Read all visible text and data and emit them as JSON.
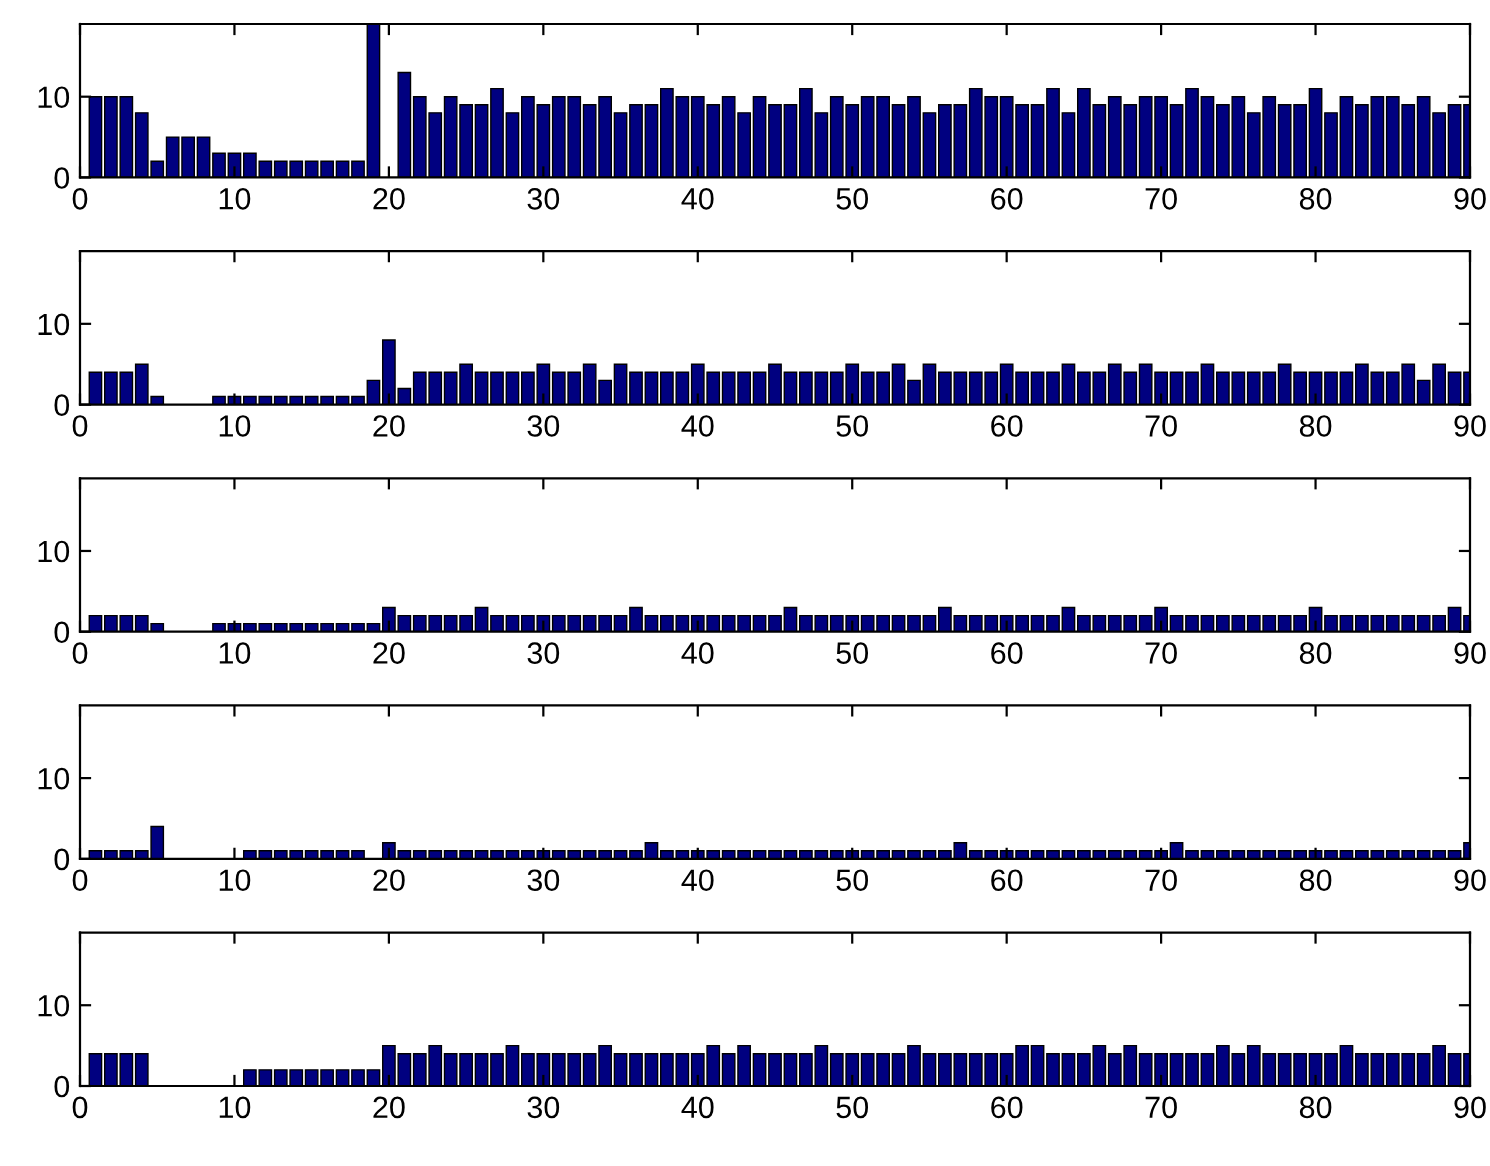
{
  "chart_data": [
    {
      "type": "bar",
      "x": [
        1,
        2,
        3,
        4,
        5,
        6,
        7,
        8,
        9,
        10,
        11,
        12,
        13,
        14,
        15,
        16,
        17,
        18,
        19,
        20,
        21,
        22,
        23,
        24,
        25,
        26,
        27,
        28,
        29,
        30,
        31,
        32,
        33,
        34,
        35,
        36,
        37,
        38,
        39,
        40,
        41,
        42,
        43,
        44,
        45,
        46,
        47,
        48,
        49,
        50,
        51,
        52,
        53,
        54,
        55,
        56,
        57,
        58,
        59,
        60,
        61,
        62,
        63,
        64,
        65,
        66,
        67,
        68,
        69,
        70,
        71,
        72,
        73,
        74,
        75,
        76,
        77,
        78,
        79,
        80,
        81,
        82,
        83,
        84,
        85,
        86,
        87,
        88,
        89,
        90
      ],
      "color": "#000080",
      "values": [
        10,
        10,
        10,
        8,
        2,
        5,
        5,
        5,
        3,
        3,
        3,
        2,
        2,
        2,
        2,
        2,
        2,
        2,
        19,
        0,
        13,
        10,
        8,
        10,
        9,
        9,
        11,
        8,
        10,
        9,
        10,
        10,
        9,
        10,
        8,
        9,
        9,
        11,
        10,
        10,
        9,
        10,
        8,
        10,
        9,
        9,
        11,
        8,
        10,
        9,
        10,
        10,
        9,
        10,
        8,
        9,
        9,
        11,
        10,
        10,
        9,
        9,
        11,
        8,
        11,
        9,
        10,
        9,
        10,
        10,
        9,
        11,
        10,
        9,
        10,
        8,
        10,
        9,
        9,
        11,
        8,
        10,
        9,
        10,
        10,
        9,
        10,
        8,
        9,
        9
      ],
      "xlim": [
        0,
        90
      ],
      "ylim": [
        0,
        19
      ],
      "xticks": [
        0,
        10,
        20,
        30,
        40,
        50,
        60,
        70,
        80,
        90
      ],
      "yticks": [
        0,
        10
      ]
    },
    {
      "type": "bar",
      "x": [
        1,
        2,
        3,
        4,
        5,
        6,
        7,
        8,
        9,
        10,
        11,
        12,
        13,
        14,
        15,
        16,
        17,
        18,
        19,
        20,
        21,
        22,
        23,
        24,
        25,
        26,
        27,
        28,
        29,
        30,
        31,
        32,
        33,
        34,
        35,
        36,
        37,
        38,
        39,
        40,
        41,
        42,
        43,
        44,
        45,
        46,
        47,
        48,
        49,
        50,
        51,
        52,
        53,
        54,
        55,
        56,
        57,
        58,
        59,
        60,
        61,
        62,
        63,
        64,
        65,
        66,
        67,
        68,
        69,
        70,
        71,
        72,
        73,
        74,
        75,
        76,
        77,
        78,
        79,
        80,
        81,
        82,
        83,
        84,
        85,
        86,
        87,
        88,
        89,
        90
      ],
      "color": "#000080",
      "values": [
        4,
        4,
        4,
        5,
        1,
        0,
        0,
        0,
        1,
        1,
        1,
        1,
        1,
        1,
        1,
        1,
        1,
        1,
        3,
        8,
        2,
        4,
        4,
        4,
        5,
        4,
        4,
        4,
        4,
        5,
        4,
        4,
        5,
        3,
        5,
        4,
        4,
        4,
        4,
        5,
        4,
        4,
        4,
        4,
        5,
        4,
        4,
        4,
        4,
        5,
        4,
        4,
        5,
        3,
        5,
        4,
        4,
        4,
        4,
        5,
        4,
        4,
        4,
        5,
        4,
        4,
        5,
        4,
        5,
        4,
        4,
        4,
        5,
        4,
        4,
        4,
        4,
        5,
        4,
        4,
        4,
        4,
        5,
        4,
        4,
        5,
        3,
        5,
        4,
        4
      ],
      "xlim": [
        0,
        90
      ],
      "ylim": [
        0,
        19
      ],
      "xticks": [
        0,
        10,
        20,
        30,
        40,
        50,
        60,
        70,
        80,
        90
      ],
      "yticks": [
        0,
        10
      ]
    },
    {
      "type": "bar",
      "x": [
        1,
        2,
        3,
        4,
        5,
        6,
        7,
        8,
        9,
        10,
        11,
        12,
        13,
        14,
        15,
        16,
        17,
        18,
        19,
        20,
        21,
        22,
        23,
        24,
        25,
        26,
        27,
        28,
        29,
        30,
        31,
        32,
        33,
        34,
        35,
        36,
        37,
        38,
        39,
        40,
        41,
        42,
        43,
        44,
        45,
        46,
        47,
        48,
        49,
        50,
        51,
        52,
        53,
        54,
        55,
        56,
        57,
        58,
        59,
        60,
        61,
        62,
        63,
        64,
        65,
        66,
        67,
        68,
        69,
        70,
        71,
        72,
        73,
        74,
        75,
        76,
        77,
        78,
        79,
        80,
        81,
        82,
        83,
        84,
        85,
        86,
        87,
        88,
        89,
        90
      ],
      "color": "#000080",
      "values": [
        2,
        2,
        2,
        2,
        1,
        0,
        0,
        0,
        1,
        1,
        1,
        1,
        1,
        1,
        1,
        1,
        1,
        1,
        1,
        3,
        2,
        2,
        2,
        2,
        2,
        3,
        2,
        2,
        2,
        2,
        2,
        2,
        2,
        2,
        2,
        3,
        2,
        2,
        2,
        2,
        2,
        2,
        2,
        2,
        2,
        3,
        2,
        2,
        2,
        2,
        2,
        2,
        2,
        2,
        2,
        3,
        2,
        2,
        2,
        2,
        2,
        2,
        2,
        3,
        2,
        2,
        2,
        2,
        2,
        3,
        2,
        2,
        2,
        2,
        2,
        2,
        2,
        2,
        2,
        3,
        2,
        2,
        2,
        2,
        2,
        2,
        2,
        2,
        3,
        2
      ],
      "xlim": [
        0,
        90
      ],
      "ylim": [
        0,
        19
      ],
      "xticks": [
        0,
        10,
        20,
        30,
        40,
        50,
        60,
        70,
        80,
        90
      ],
      "yticks": [
        0,
        10
      ]
    },
    {
      "type": "bar",
      "x": [
        1,
        2,
        3,
        4,
        5,
        6,
        7,
        8,
        9,
        10,
        11,
        12,
        13,
        14,
        15,
        16,
        17,
        18,
        19,
        20,
        21,
        22,
        23,
        24,
        25,
        26,
        27,
        28,
        29,
        30,
        31,
        32,
        33,
        34,
        35,
        36,
        37,
        38,
        39,
        40,
        41,
        42,
        43,
        44,
        45,
        46,
        47,
        48,
        49,
        50,
        51,
        52,
        53,
        54,
        55,
        56,
        57,
        58,
        59,
        60,
        61,
        62,
        63,
        64,
        65,
        66,
        67,
        68,
        69,
        70,
        71,
        72,
        73,
        74,
        75,
        76,
        77,
        78,
        79,
        80,
        81,
        82,
        83,
        84,
        85,
        86,
        87,
        88,
        89,
        90
      ],
      "color": "#000080",
      "values": [
        1,
        1,
        1,
        1,
        4,
        0,
        0,
        0,
        0,
        0,
        1,
        1,
        1,
        1,
        1,
        1,
        1,
        1,
        0,
        2,
        1,
        1,
        1,
        1,
        1,
        1,
        1,
        1,
        1,
        1,
        1,
        1,
        1,
        1,
        1,
        1,
        2,
        1,
        1,
        1,
        1,
        1,
        1,
        1,
        1,
        1,
        1,
        1,
        1,
        1,
        1,
        1,
        1,
        1,
        1,
        1,
        2,
        1,
        1,
        1,
        1,
        1,
        1,
        1,
        1,
        1,
        1,
        1,
        1,
        1,
        2,
        1,
        1,
        1,
        1,
        1,
        1,
        1,
        1,
        1,
        1,
        1,
        1,
        1,
        1,
        1,
        1,
        1,
        1,
        2
      ],
      "xlim": [
        0,
        90
      ],
      "ylim": [
        0,
        19
      ],
      "xticks": [
        0,
        10,
        20,
        30,
        40,
        50,
        60,
        70,
        80,
        90
      ],
      "yticks": [
        0,
        10
      ]
    },
    {
      "type": "bar",
      "x": [
        1,
        2,
        3,
        4,
        5,
        6,
        7,
        8,
        9,
        10,
        11,
        12,
        13,
        14,
        15,
        16,
        17,
        18,
        19,
        20,
        21,
        22,
        23,
        24,
        25,
        26,
        27,
        28,
        29,
        30,
        31,
        32,
        33,
        34,
        35,
        36,
        37,
        38,
        39,
        40,
        41,
        42,
        43,
        44,
        45,
        46,
        47,
        48,
        49,
        50,
        51,
        52,
        53,
        54,
        55,
        56,
        57,
        58,
        59,
        60,
        61,
        62,
        63,
        64,
        65,
        66,
        67,
        68,
        69,
        70,
        71,
        72,
        73,
        74,
        75,
        76,
        77,
        78,
        79,
        80,
        81,
        82,
        83,
        84,
        85,
        86,
        87,
        88,
        89,
        90
      ],
      "color": "#000080",
      "values": [
        4,
        4,
        4,
        4,
        0,
        0,
        0,
        0,
        0,
        0,
        2,
        2,
        2,
        2,
        2,
        2,
        2,
        2,
        2,
        5,
        4,
        4,
        5,
        4,
        4,
        4,
        4,
        5,
        4,
        4,
        4,
        4,
        4,
        5,
        4,
        4,
        4,
        4,
        4,
        4,
        5,
        4,
        5,
        4,
        4,
        4,
        4,
        5,
        4,
        4,
        4,
        4,
        4,
        5,
        4,
        4,
        4,
        4,
        4,
        4,
        5,
        5,
        4,
        4,
        4,
        5,
        4,
        5,
        4,
        4,
        4,
        4,
        4,
        5,
        4,
        5,
        4,
        4,
        4,
        4,
        4,
        5,
        4,
        4,
        4,
        4,
        4,
        5,
        4,
        4
      ],
      "xlim": [
        0,
        90
      ],
      "ylim": [
        0,
        19
      ],
      "xticks": [
        0,
        10,
        20,
        30,
        40,
        50,
        60,
        70,
        80,
        90
      ],
      "yticks": [
        0,
        10
      ]
    }
  ]
}
